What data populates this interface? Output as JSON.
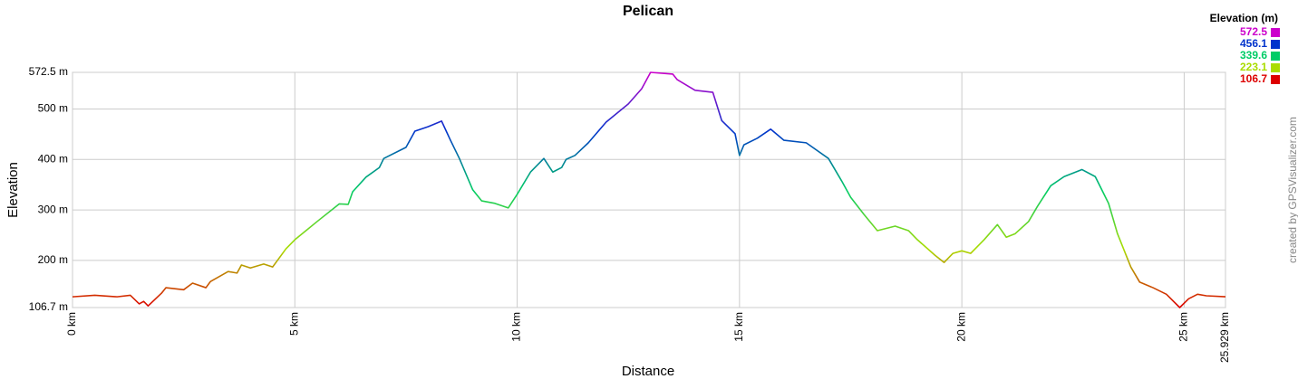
{
  "chart_data": {
    "type": "line",
    "title": "Pelican",
    "x_label": "Distance",
    "y_label": "Elevation",
    "credit": "created by GPSVisualizer.com",
    "legend": {
      "title": "Elevation (m)",
      "values": [
        572.5,
        456.1,
        339.6,
        223.1,
        106.7
      ],
      "colors": [
        "#cc00cc",
        "#0033cc",
        "#00cc66",
        "#aadd00",
        "#dd0000"
      ]
    },
    "xlim": [
      0,
      25.929
    ],
    "xticks": [
      {
        "value": 0,
        "label": "0 km"
      },
      {
        "value": 5,
        "label": "5 km"
      },
      {
        "value": 10,
        "label": "10 km"
      },
      {
        "value": 15,
        "label": "15 km"
      },
      {
        "value": 20,
        "label": "20 km"
      },
      {
        "value": 25,
        "label": "25 km"
      },
      {
        "value": 25.929,
        "label": "25.929 km"
      }
    ],
    "ylim": [
      106.7,
      572.5
    ],
    "yticks": [
      {
        "value": 106.7,
        "label": "106.7 m"
      },
      {
        "value": 200,
        "label": "200 m"
      },
      {
        "value": 300,
        "label": "300 m"
      },
      {
        "value": 400,
        "label": "400 m"
      },
      {
        "value": 500,
        "label": "500 m"
      },
      {
        "value": 572.5,
        "label": "572.5 m"
      }
    ],
    "grid": true,
    "x": [
      0,
      0.5,
      1,
      1.3,
      1.5,
      1.6,
      1.7,
      2,
      2.1,
      2.5,
      2.7,
      3,
      3.1,
      3.5,
      3.7,
      3.8,
      4,
      4.3,
      4.5,
      4.8,
      5,
      5.5,
      6,
      6.2,
      6.3,
      6.6,
      6.9,
      7,
      7.5,
      7.7,
      8,
      8.3,
      8.5,
      8.7,
      9,
      9.2,
      9.5,
      9.8,
      10,
      10.3,
      10.6,
      10.8,
      11,
      11.1,
      11.3,
      11.6,
      12,
      12.5,
      12.8,
      13,
      13.5,
      13.6,
      14,
      14.4,
      14.6,
      14.9,
      15,
      15.1,
      15.4,
      15.7,
      16,
      16.5,
      17,
      17.3,
      17.5,
      17.8,
      18.1,
      18.5,
      18.8,
      19,
      19.4,
      19.6,
      19.8,
      20,
      20.2,
      20.5,
      20.8,
      21,
      21.2,
      21.5,
      21.7,
      22,
      22.3,
      22.7,
      23,
      23.3,
      23.5,
      23.8,
      24,
      24.3,
      24.6,
      24.9,
      25.1,
      25.3,
      25.5,
      25.929
    ],
    "series": [
      {
        "name": "Elevation",
        "values": [
          128,
          131,
          128,
          131,
          114,
          119,
          110,
          135,
          146,
          142,
          155,
          146,
          158,
          178,
          175,
          191,
          185,
          193,
          187,
          223,
          241,
          277,
          312,
          311,
          336,
          365,
          384,
          402,
          424,
          456,
          465,
          476,
          438,
          402,
          340,
          318,
          313,
          304,
          331,
          375,
          402,
          375,
          384,
          400,
          408,
          433,
          474,
          510,
          540,
          572.5,
          569,
          558,
          537,
          533,
          477,
          451,
          408,
          429,
          442,
          460,
          438,
          433,
          402,
          357,
          325,
          291,
          259,
          268,
          259,
          241,
          210,
          196,
          214,
          219,
          214,
          241,
          271,
          246,
          253,
          277,
          307,
          348,
          366,
          380,
          366,
          313,
          253,
          187,
          157,
          146,
          133,
          106.7,
          124,
          133,
          130,
          128
        ]
      }
    ]
  }
}
